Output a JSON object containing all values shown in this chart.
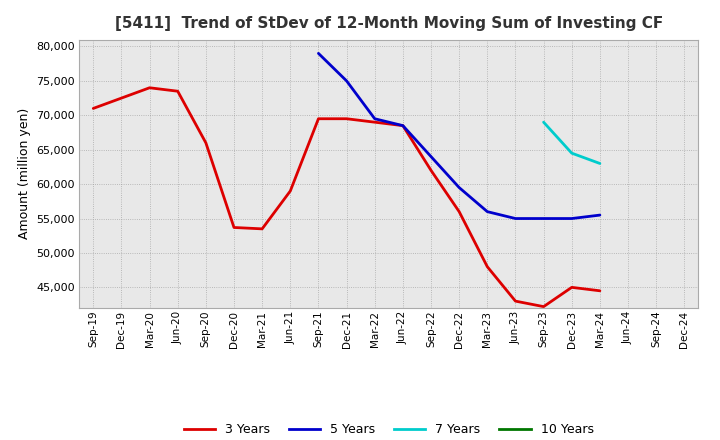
{
  "title": "[5411]  Trend of StDev of 12-Month Moving Sum of Investing CF",
  "ylabel": "Amount (million yen)",
  "background_color": "#ffffff",
  "plot_bg_color": "#e8e8e8",
  "grid_color": "#ffffff",
  "ylim": [
    42000,
    81000
  ],
  "yticks": [
    45000,
    50000,
    55000,
    60000,
    65000,
    70000,
    75000,
    80000
  ],
  "x_labels": [
    "Sep-19",
    "Dec-19",
    "Mar-20",
    "Jun-20",
    "Sep-20",
    "Dec-20",
    "Mar-21",
    "Jun-21",
    "Sep-21",
    "Dec-21",
    "Mar-22",
    "Jun-22",
    "Sep-22",
    "Dec-22",
    "Mar-23",
    "Jun-23",
    "Sep-23",
    "Dec-23",
    "Mar-24",
    "Jun-24",
    "Sep-24",
    "Dec-24"
  ],
  "series_3y": {
    "label": "3 Years",
    "color": "#dd0000",
    "linewidth": 2.0,
    "data": [
      [
        "Sep-19",
        71000
      ],
      [
        "Dec-19",
        72500
      ],
      [
        "Mar-20",
        74000
      ],
      [
        "Jun-20",
        73500
      ],
      [
        "Sep-20",
        66000
      ],
      [
        "Dec-20",
        53700
      ],
      [
        "Mar-21",
        53500
      ],
      [
        "Jun-21",
        59000
      ],
      [
        "Sep-21",
        69500
      ],
      [
        "Dec-21",
        69500
      ],
      [
        "Mar-22",
        69000
      ],
      [
        "Jun-22",
        68500
      ],
      [
        "Sep-22",
        62000
      ],
      [
        "Dec-22",
        56000
      ],
      [
        "Mar-23",
        48000
      ],
      [
        "Jun-23",
        43000
      ],
      [
        "Sep-23",
        42200
      ],
      [
        "Dec-23",
        45000
      ],
      [
        "Mar-24",
        44500
      ]
    ]
  },
  "series_5y": {
    "label": "5 Years",
    "color": "#0000cc",
    "linewidth": 2.0,
    "data": [
      [
        "Sep-21",
        79000
      ],
      [
        "Dec-21",
        75000
      ],
      [
        "Mar-22",
        69500
      ],
      [
        "Jun-22",
        68500
      ],
      [
        "Sep-22",
        64000
      ],
      [
        "Dec-22",
        59500
      ],
      [
        "Mar-23",
        56000
      ],
      [
        "Jun-23",
        55000
      ],
      [
        "Sep-23",
        55000
      ],
      [
        "Dec-23",
        55000
      ],
      [
        "Mar-24",
        55500
      ]
    ]
  },
  "series_7y": {
    "label": "7 Years",
    "color": "#00cccc",
    "linewidth": 2.0,
    "data": [
      [
        "Sep-23",
        69000
      ],
      [
        "Dec-23",
        64500
      ],
      [
        "Mar-24",
        63000
      ]
    ]
  },
  "series_10y": {
    "label": "10 Years",
    "color": "#007700",
    "linewidth": 2.0,
    "data": []
  },
  "legend_items": [
    "3 Years",
    "5 Years",
    "7 Years",
    "10 Years"
  ],
  "legend_colors": [
    "#dd0000",
    "#0000cc",
    "#00cccc",
    "#007700"
  ],
  "title_fontsize": 11,
  "ylabel_fontsize": 9,
  "tick_fontsize": 8,
  "xtick_fontsize": 7.5
}
